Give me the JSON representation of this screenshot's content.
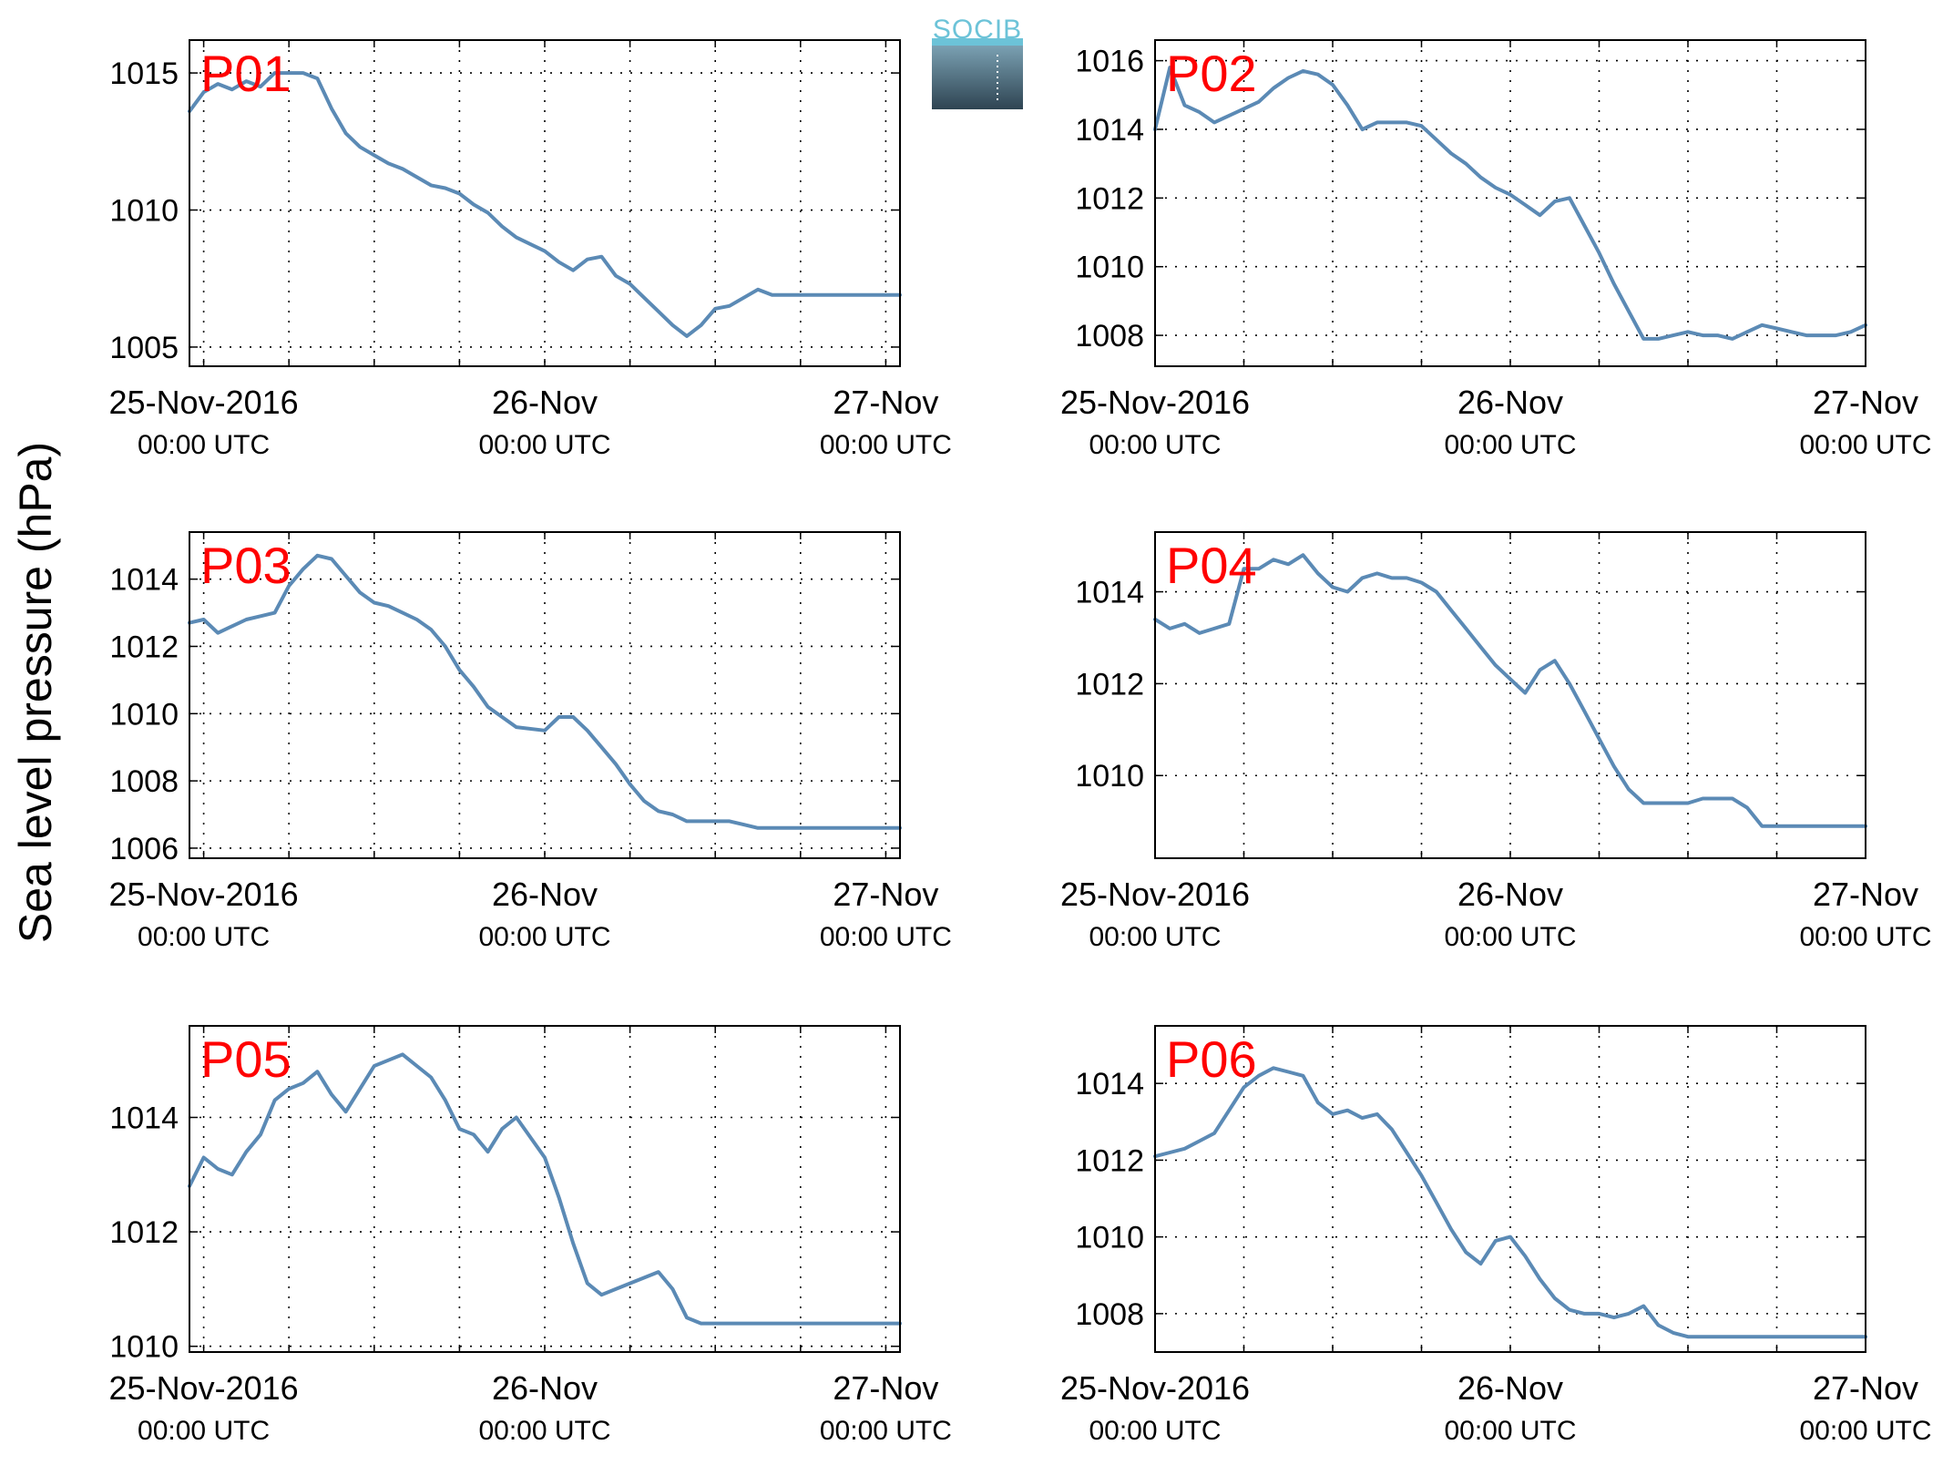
{
  "figure": {
    "ylabel": "Sea level pressure (hPa)",
    "logo_text": "SOCIB",
    "line_color": "#5b8ab5",
    "label_color": "#ff0000",
    "grid": true,
    "grid_style": "dotted"
  },
  "chart_data": [
    {
      "type": "line",
      "label": "P01",
      "x_ticks": [
        "2016-11-25 00:00",
        "2016-11-26 00:00",
        "2016-11-27 00:00"
      ],
      "x_tick_labels": [
        [
          "25-Nov-2016",
          "00:00 UTC"
        ],
        [
          "26-Nov",
          "00:00 UTC"
        ],
        [
          "27-Nov",
          "00:00 UTC"
        ]
      ],
      "xlim": [
        "2016-11-24 23:00",
        "2016-11-27 01:00"
      ],
      "ylim": [
        1004.3,
        1016.2
      ],
      "y_ticks": [
        1005,
        1010,
        1015
      ],
      "x": [
        "2016-11-24 23:00",
        "2016-11-25 00:00",
        "2016-11-25 01:00",
        "2016-11-25 02:00",
        "2016-11-25 03:00",
        "2016-11-25 04:00",
        "2016-11-25 05:00",
        "2016-11-25 06:00",
        "2016-11-25 07:00",
        "2016-11-25 08:00",
        "2016-11-25 09:00",
        "2016-11-25 10:00",
        "2016-11-25 11:00",
        "2016-11-25 12:00",
        "2016-11-25 13:00",
        "2016-11-25 14:00",
        "2016-11-25 15:00",
        "2016-11-25 16:00",
        "2016-11-25 17:00",
        "2016-11-25 18:00",
        "2016-11-25 19:00",
        "2016-11-25 20:00",
        "2016-11-25 21:00",
        "2016-11-25 22:00",
        "2016-11-26 00:00",
        "2016-11-26 01:00",
        "2016-11-26 02:00",
        "2016-11-26 03:00",
        "2016-11-26 04:00",
        "2016-11-26 05:00",
        "2016-11-26 06:00",
        "2016-11-26 07:00",
        "2016-11-26 08:00",
        "2016-11-26 09:00",
        "2016-11-26 10:00",
        "2016-11-26 11:00",
        "2016-11-26 12:00",
        "2016-11-26 13:00",
        "2016-11-26 14:00",
        "2016-11-26 15:00",
        "2016-11-26 16:00",
        "2016-11-26 17:00",
        "2016-11-26 18:00",
        "2016-11-26 19:00",
        "2016-11-26 20:00",
        "2016-11-26 21:00",
        "2016-11-26 22:00",
        "2016-11-26 23:00",
        "2016-11-27 01:00"
      ],
      "y": [
        1013.6,
        1014.3,
        1014.6,
        1014.4,
        1014.7,
        1014.5,
        1015.0,
        1015.0,
        1015.0,
        1014.8,
        1013.7,
        1012.8,
        1012.3,
        1012.0,
        1011.7,
        1011.5,
        1011.2,
        1010.9,
        1010.8,
        1010.6,
        1010.2,
        1009.9,
        1009.4,
        1009.0,
        1008.5,
        1008.1,
        1007.8,
        1008.2,
        1008.3,
        1007.6,
        1007.3,
        1006.8,
        1006.3,
        1005.8,
        1005.4,
        1005.8,
        1006.4,
        1006.5,
        1006.8,
        1007.1,
        1006.9,
        1006.9,
        1006.9,
        1006.9,
        1006.9,
        1006.9,
        1006.9,
        1006.9,
        1006.9
      ]
    },
    {
      "type": "line",
      "label": "P02",
      "x_ticks": [
        "2016-11-25 00:00",
        "2016-11-26 00:00",
        "2016-11-27 00:00"
      ],
      "x_tick_labels": [
        [
          "25-Nov-2016",
          "00:00 UTC"
        ],
        [
          "26-Nov",
          "00:00 UTC"
        ],
        [
          "27-Nov",
          "00:00 UTC"
        ]
      ],
      "xlim": [
        "2016-11-25 00:00",
        "2016-11-27 00:00"
      ],
      "ylim": [
        1007.1,
        1016.6
      ],
      "y_ticks": [
        1008,
        1010,
        1012,
        1014,
        1016
      ],
      "x": [
        "2016-11-25 00:00",
        "2016-11-25 01:00",
        "2016-11-25 02:00",
        "2016-11-25 03:00",
        "2016-11-25 04:00",
        "2016-11-25 05:00",
        "2016-11-25 06:00",
        "2016-11-25 07:00",
        "2016-11-25 08:00",
        "2016-11-25 09:00",
        "2016-11-25 10:00",
        "2016-11-25 11:00",
        "2016-11-25 12:00",
        "2016-11-25 13:00",
        "2016-11-25 14:00",
        "2016-11-25 15:00",
        "2016-11-25 16:00",
        "2016-11-25 17:00",
        "2016-11-25 18:00",
        "2016-11-25 19:00",
        "2016-11-25 20:00",
        "2016-11-25 21:00",
        "2016-11-25 22:00",
        "2016-11-25 23:00",
        "2016-11-26 00:00",
        "2016-11-26 01:00",
        "2016-11-26 02:00",
        "2016-11-26 03:00",
        "2016-11-26 04:00",
        "2016-11-26 05:00",
        "2016-11-26 06:00",
        "2016-11-26 07:00",
        "2016-11-26 08:00",
        "2016-11-26 09:00",
        "2016-11-26 10:00",
        "2016-11-26 11:00",
        "2016-11-26 12:00",
        "2016-11-26 13:00",
        "2016-11-26 14:00",
        "2016-11-26 15:00",
        "2016-11-26 16:00",
        "2016-11-26 17:00",
        "2016-11-26 18:00",
        "2016-11-26 19:00",
        "2016-11-26 20:00",
        "2016-11-26 21:00",
        "2016-11-26 22:00",
        "2016-11-26 23:00",
        "2016-11-27 00:00"
      ],
      "y": [
        1014.0,
        1015.8,
        1014.7,
        1014.5,
        1014.2,
        1014.4,
        1014.6,
        1014.8,
        1015.2,
        1015.5,
        1015.7,
        1015.6,
        1015.3,
        1014.7,
        1014.0,
        1014.2,
        1014.2,
        1014.2,
        1014.1,
        1013.7,
        1013.3,
        1013.0,
        1012.6,
        1012.3,
        1012.1,
        1011.8,
        1011.5,
        1011.9,
        1012.0,
        1011.2,
        1010.4,
        1009.5,
        1008.7,
        1007.9,
        1007.9,
        1008.0,
        1008.1,
        1008.0,
        1008.0,
        1007.9,
        1008.1,
        1008.3,
        1008.2,
        1008.1,
        1008.0,
        1008.0,
        1008.0,
        1008.1,
        1008.3
      ]
    },
    {
      "type": "line",
      "label": "P03",
      "x_ticks": [
        "2016-11-25 00:00",
        "2016-11-26 00:00",
        "2016-11-27 00:00"
      ],
      "x_tick_labels": [
        [
          "25-Nov-2016",
          "00:00 UTC"
        ],
        [
          "26-Nov",
          "00:00 UTC"
        ],
        [
          "27-Nov",
          "00:00 UTC"
        ]
      ],
      "xlim": [
        "2016-11-24 23:00",
        "2016-11-27 01:00"
      ],
      "ylim": [
        1005.7,
        1015.4
      ],
      "y_ticks": [
        1006,
        1008,
        1010,
        1012,
        1014
      ],
      "x": [
        "2016-11-24 23:00",
        "2016-11-25 00:00",
        "2016-11-25 01:00",
        "2016-11-25 02:00",
        "2016-11-25 03:00",
        "2016-11-25 04:00",
        "2016-11-25 05:00",
        "2016-11-25 06:00",
        "2016-11-25 07:00",
        "2016-11-25 08:00",
        "2016-11-25 09:00",
        "2016-11-25 10:00",
        "2016-11-25 11:00",
        "2016-11-25 12:00",
        "2016-11-25 13:00",
        "2016-11-25 14:00",
        "2016-11-25 15:00",
        "2016-11-25 16:00",
        "2016-11-25 17:00",
        "2016-11-25 18:00",
        "2016-11-25 19:00",
        "2016-11-25 20:00",
        "2016-11-25 21:00",
        "2016-11-25 22:00",
        "2016-11-26 00:00",
        "2016-11-26 01:00",
        "2016-11-26 02:00",
        "2016-11-26 03:00",
        "2016-11-26 04:00",
        "2016-11-26 05:00",
        "2016-11-26 06:00",
        "2016-11-26 07:00",
        "2016-11-26 08:00",
        "2016-11-26 09:00",
        "2016-11-26 10:00",
        "2016-11-26 11:00",
        "2016-11-26 12:00",
        "2016-11-26 13:00",
        "2016-11-26 14:00",
        "2016-11-26 15:00",
        "2016-11-26 16:00",
        "2016-11-26 17:00",
        "2016-11-26 18:00",
        "2016-11-26 19:00",
        "2016-11-26 20:00",
        "2016-11-26 21:00",
        "2016-11-26 22:00",
        "2016-11-26 23:00",
        "2016-11-27 01:00"
      ],
      "y": [
        1012.7,
        1012.8,
        1012.4,
        1012.6,
        1012.8,
        1012.9,
        1013.0,
        1013.8,
        1014.3,
        1014.7,
        1014.6,
        1014.1,
        1013.6,
        1013.3,
        1013.2,
        1013.0,
        1012.8,
        1012.5,
        1012.0,
        1011.3,
        1010.8,
        1010.2,
        1009.9,
        1009.6,
        1009.5,
        1009.9,
        1009.9,
        1009.5,
        1009.0,
        1008.5,
        1007.9,
        1007.4,
        1007.1,
        1007.0,
        1006.8,
        1006.8,
        1006.8,
        1006.8,
        1006.7,
        1006.6,
        1006.6,
        1006.6,
        1006.6,
        1006.6,
        1006.6,
        1006.6,
        1006.6,
        1006.6,
        1006.6
      ]
    },
    {
      "type": "line",
      "label": "P04",
      "x_ticks": [
        "2016-11-25 00:00",
        "2016-11-26 00:00",
        "2016-11-27 00:00"
      ],
      "x_tick_labels": [
        [
          "25-Nov-2016",
          "00:00 UTC"
        ],
        [
          "26-Nov",
          "00:00 UTC"
        ],
        [
          "27-Nov",
          "00:00 UTC"
        ]
      ],
      "xlim": [
        "2016-11-25 00:00",
        "2016-11-27 00:00"
      ],
      "ylim": [
        1008.2,
        1015.3
      ],
      "y_ticks": [
        1010,
        1012,
        1014
      ],
      "x": [
        "2016-11-25 00:00",
        "2016-11-25 01:00",
        "2016-11-25 02:00",
        "2016-11-25 03:00",
        "2016-11-25 04:00",
        "2016-11-25 05:00",
        "2016-11-25 06:00",
        "2016-11-25 07:00",
        "2016-11-25 08:00",
        "2016-11-25 09:00",
        "2016-11-25 10:00",
        "2016-11-25 11:00",
        "2016-11-25 12:00",
        "2016-11-25 13:00",
        "2016-11-25 14:00",
        "2016-11-25 15:00",
        "2016-11-25 16:00",
        "2016-11-25 17:00",
        "2016-11-25 18:00",
        "2016-11-25 19:00",
        "2016-11-25 20:00",
        "2016-11-25 21:00",
        "2016-11-25 22:00",
        "2016-11-25 23:00",
        "2016-11-26 00:00",
        "2016-11-26 01:00",
        "2016-11-26 02:00",
        "2016-11-26 03:00",
        "2016-11-26 04:00",
        "2016-11-26 05:00",
        "2016-11-26 06:00",
        "2016-11-26 07:00",
        "2016-11-26 08:00",
        "2016-11-26 09:00",
        "2016-11-26 10:00",
        "2016-11-26 11:00",
        "2016-11-26 12:00",
        "2016-11-26 13:00",
        "2016-11-26 14:00",
        "2016-11-26 15:00",
        "2016-11-26 16:00",
        "2016-11-26 17:00",
        "2016-11-26 18:00",
        "2016-11-26 19:00",
        "2016-11-26 20:00",
        "2016-11-26 21:00",
        "2016-11-26 22:00",
        "2016-11-26 23:00",
        "2016-11-27 00:00"
      ],
      "y": [
        1013.4,
        1013.2,
        1013.3,
        1013.1,
        1013.2,
        1013.3,
        1014.5,
        1014.5,
        1014.7,
        1014.6,
        1014.8,
        1014.4,
        1014.1,
        1014.0,
        1014.3,
        1014.4,
        1014.3,
        1014.3,
        1014.2,
        1014.0,
        1013.6,
        1013.2,
        1012.8,
        1012.4,
        1012.1,
        1011.8,
        1012.3,
        1012.5,
        1012.0,
        1011.4,
        1010.8,
        1010.2,
        1009.7,
        1009.4,
        1009.4,
        1009.4,
        1009.4,
        1009.5,
        1009.5,
        1009.5,
        1009.3,
        1008.9,
        1008.9,
        1008.9,
        1008.9,
        1008.9,
        1008.9,
        1008.9,
        1008.9
      ]
    },
    {
      "type": "line",
      "label": "P05",
      "x_ticks": [
        "2016-11-25 00:00",
        "2016-11-26 00:00",
        "2016-11-27 00:00"
      ],
      "x_tick_labels": [
        [
          "25-Nov-2016",
          "00:00 UTC"
        ],
        [
          "26-Nov",
          "00:00 UTC"
        ],
        [
          "27-Nov",
          "00:00 UTC"
        ]
      ],
      "xlim": [
        "2016-11-24 23:00",
        "2016-11-27 01:00"
      ],
      "ylim": [
        1009.9,
        1015.6
      ],
      "y_ticks": [
        1010,
        1012,
        1014
      ],
      "x": [
        "2016-11-24 23:00",
        "2016-11-25 00:00",
        "2016-11-25 01:00",
        "2016-11-25 02:00",
        "2016-11-25 03:00",
        "2016-11-25 04:00",
        "2016-11-25 05:00",
        "2016-11-25 06:00",
        "2016-11-25 07:00",
        "2016-11-25 08:00",
        "2016-11-25 09:00",
        "2016-11-25 10:00",
        "2016-11-25 11:00",
        "2016-11-25 12:00",
        "2016-11-25 13:00",
        "2016-11-25 14:00",
        "2016-11-25 15:00",
        "2016-11-25 16:00",
        "2016-11-25 17:00",
        "2016-11-25 18:00",
        "2016-11-25 19:00",
        "2016-11-25 20:00",
        "2016-11-25 21:00",
        "2016-11-25 22:00",
        "2016-11-26 00:00",
        "2016-11-26 01:00",
        "2016-11-26 02:00",
        "2016-11-26 03:00",
        "2016-11-26 04:00",
        "2016-11-26 05:00",
        "2016-11-26 06:00",
        "2016-11-26 07:00",
        "2016-11-26 08:00",
        "2016-11-26 09:00",
        "2016-11-26 10:00",
        "2016-11-26 11:00",
        "2016-11-26 12:00",
        "2016-11-26 13:00",
        "2016-11-26 14:00",
        "2016-11-26 15:00",
        "2016-11-26 16:00",
        "2016-11-26 17:00",
        "2016-11-26 18:00",
        "2016-11-26 19:00",
        "2016-11-26 20:00",
        "2016-11-26 21:00",
        "2016-11-26 22:00",
        "2016-11-26 23:00",
        "2016-11-27 01:00"
      ],
      "y": [
        1012.8,
        1013.3,
        1013.1,
        1013.0,
        1013.4,
        1013.7,
        1014.3,
        1014.5,
        1014.6,
        1014.8,
        1014.4,
        1014.1,
        1014.5,
        1014.9,
        1015.0,
        1015.1,
        1014.9,
        1014.7,
        1014.3,
        1013.8,
        1013.7,
        1013.4,
        1013.8,
        1014.0,
        1013.3,
        1012.6,
        1011.8,
        1011.1,
        1010.9,
        1011.0,
        1011.1,
        1011.2,
        1011.3,
        1011.0,
        1010.5,
        1010.4,
        1010.4,
        1010.4,
        1010.4,
        1010.4,
        1010.4,
        1010.4,
        1010.4,
        1010.4,
        1010.4,
        1010.4,
        1010.4,
        1010.4,
        1010.4
      ]
    },
    {
      "type": "line",
      "label": "P06",
      "x_ticks": [
        "2016-11-25 00:00",
        "2016-11-26 00:00",
        "2016-11-27 00:00"
      ],
      "x_tick_labels": [
        [
          "25-Nov-2016",
          "00:00 UTC"
        ],
        [
          "26-Nov",
          "00:00 UTC"
        ],
        [
          "27-Nov",
          "00:00 UTC"
        ]
      ],
      "xlim": [
        "2016-11-25 00:00",
        "2016-11-27 00:00"
      ],
      "ylim": [
        1007.0,
        1015.5
      ],
      "y_ticks": [
        1008,
        1010,
        1012,
        1014
      ],
      "x": [
        "2016-11-25 00:00",
        "2016-11-25 01:00",
        "2016-11-25 02:00",
        "2016-11-25 03:00",
        "2016-11-25 04:00",
        "2016-11-25 05:00",
        "2016-11-25 06:00",
        "2016-11-25 07:00",
        "2016-11-25 08:00",
        "2016-11-25 09:00",
        "2016-11-25 10:00",
        "2016-11-25 11:00",
        "2016-11-25 12:00",
        "2016-11-25 13:00",
        "2016-11-25 14:00",
        "2016-11-25 15:00",
        "2016-11-25 16:00",
        "2016-11-25 17:00",
        "2016-11-25 18:00",
        "2016-11-25 19:00",
        "2016-11-25 20:00",
        "2016-11-25 21:00",
        "2016-11-25 22:00",
        "2016-11-25 23:00",
        "2016-11-26 00:00",
        "2016-11-26 01:00",
        "2016-11-26 02:00",
        "2016-11-26 03:00",
        "2016-11-26 04:00",
        "2016-11-26 05:00",
        "2016-11-26 06:00",
        "2016-11-26 07:00",
        "2016-11-26 08:00",
        "2016-11-26 09:00",
        "2016-11-26 10:00",
        "2016-11-26 11:00",
        "2016-11-26 12:00",
        "2016-11-26 13:00",
        "2016-11-26 14:00",
        "2016-11-26 15:00",
        "2016-11-26 16:00",
        "2016-11-26 17:00",
        "2016-11-26 18:00",
        "2016-11-26 19:00",
        "2016-11-26 20:00",
        "2016-11-26 21:00",
        "2016-11-26 22:00",
        "2016-11-26 23:00",
        "2016-11-27 00:00"
      ],
      "y": [
        1012.1,
        1012.2,
        1012.3,
        1012.5,
        1012.7,
        1013.3,
        1013.9,
        1014.2,
        1014.4,
        1014.3,
        1014.2,
        1013.5,
        1013.2,
        1013.3,
        1013.1,
        1013.2,
        1012.8,
        1012.2,
        1011.6,
        1010.9,
        1010.2,
        1009.6,
        1009.3,
        1009.9,
        1010.0,
        1009.5,
        1008.9,
        1008.4,
        1008.1,
        1008.0,
        1008.0,
        1007.9,
        1008.0,
        1008.2,
        1007.7,
        1007.5,
        1007.4,
        1007.4,
        1007.4,
        1007.4,
        1007.4,
        1007.4,
        1007.4,
        1007.4,
        1007.4,
        1007.4,
        1007.4,
        1007.4,
        1007.4
      ]
    }
  ]
}
